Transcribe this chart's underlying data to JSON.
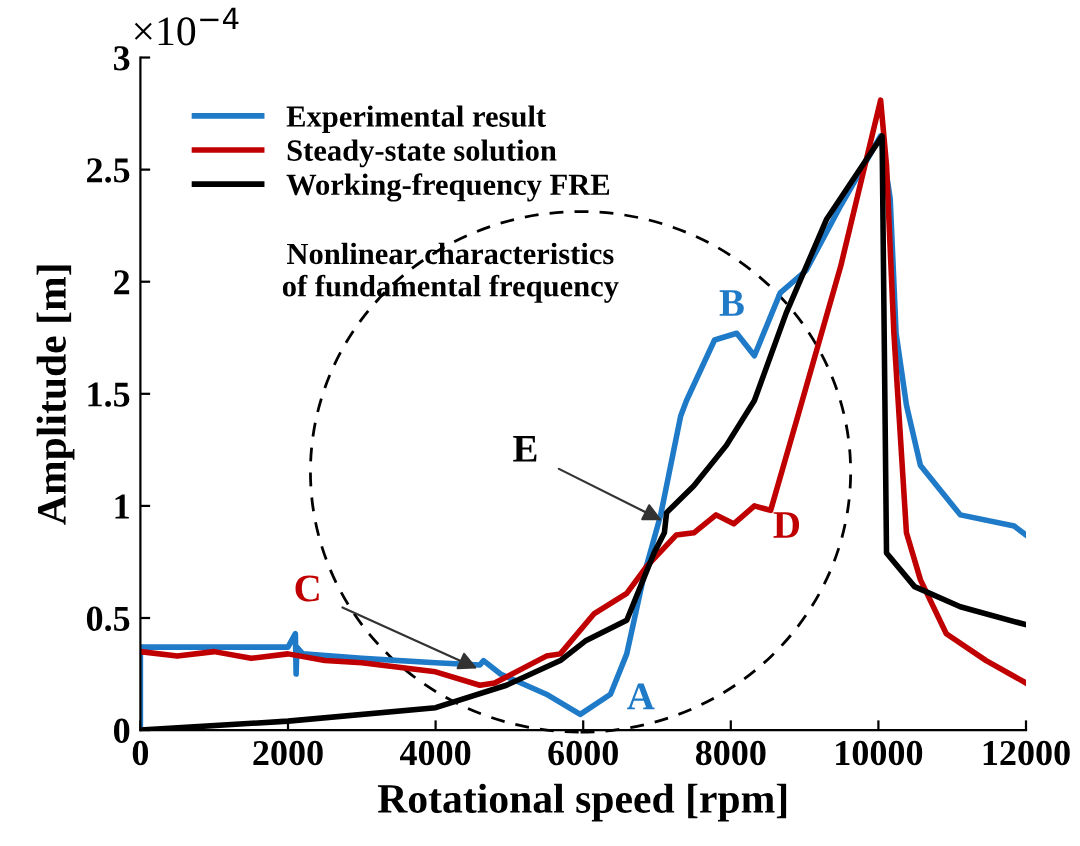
{
  "chart_data": {
    "type": "line",
    "xlabel": "Rotational speed [rpm]",
    "ylabel": "Amplitude [m]",
    "xlim": [
      0,
      12000
    ],
    "ylim": [
      0,
      3
    ],
    "xticks": [
      0,
      2000,
      4000,
      6000,
      8000,
      10000,
      12000
    ],
    "yticks": [
      0,
      0.5,
      1,
      1.5,
      2,
      2.5,
      3
    ],
    "grid": false,
    "legend": "top left",
    "line_style": "solid",
    "marker": "none",
    "series": [
      {
        "name": "Experimental result",
        "color": "#1f7ac8",
        "x": [
          0,
          0,
          1000,
          2000,
          2100,
          2110,
          2120,
          2200,
          3000,
          4000,
          4600,
          4650,
          4880,
          5500,
          5960,
          6370,
          6590,
          6830,
          7050,
          7320,
          7400,
          7780,
          8080,
          8320,
          8670,
          9020,
          9490,
          10030,
          10160,
          10240,
          10380,
          10570,
          11110,
          11840,
          12000
        ],
        "values": [
          0,
          0.37,
          0.37,
          0.37,
          0.43,
          0.25,
          0.37,
          0.34,
          0.32,
          0.3,
          0.29,
          0.31,
          0.25,
          0.16,
          0.07,
          0.16,
          0.34,
          0.7,
          0.96,
          1.4,
          1.47,
          1.74,
          1.77,
          1.67,
          1.95,
          2.05,
          2.34,
          2.65,
          2.37,
          1.77,
          1.45,
          1.18,
          0.96,
          0.91,
          0.87
        ]
      },
      {
        "name": "Steady-state solution",
        "color": "#c00000",
        "x": [
          0,
          500,
          1000,
          1500,
          2000,
          2500,
          3000,
          3500,
          4000,
          4600,
          4800,
          5500,
          5690,
          6150,
          6590,
          6860,
          7260,
          7500,
          7800,
          8040,
          8320,
          8540,
          8890,
          9490,
          10030,
          10110,
          10210,
          10380,
          10570,
          10920,
          11460,
          12000
        ],
        "values": [
          0.35,
          0.33,
          0.35,
          0.32,
          0.34,
          0.31,
          0.3,
          0.28,
          0.26,
          0.2,
          0.21,
          0.33,
          0.34,
          0.52,
          0.61,
          0.73,
          0.87,
          0.88,
          0.96,
          0.92,
          1.0,
          0.98,
          1.38,
          2.07,
          2.81,
          2.52,
          1.77,
          0.88,
          0.67,
          0.43,
          0.31,
          0.21
        ]
      },
      {
        "name": "Working-frequency FRE",
        "color": "#000000",
        "x": [
          0,
          2000,
          4000,
          4960,
          5690,
          6040,
          6590,
          6960,
          7100,
          7130,
          7500,
          7940,
          8320,
          8750,
          9300,
          10050,
          10110,
          10490,
          11110,
          12000
        ],
        "values": [
          0,
          0.04,
          0.1,
          0.2,
          0.31,
          0.4,
          0.49,
          0.79,
          0.88,
          0.97,
          1.09,
          1.27,
          1.47,
          1.86,
          2.28,
          2.65,
          0.79,
          0.64,
          0.55,
          0.47
        ]
      }
    ],
    "annotations": [
      "×10$^{−4}$",
      "Nonlinear characteristics\nof fundamental frequency",
      "A",
      "B",
      "D",
      {
        "text": "C",
        "x": 4600,
        "y": 0.27
      },
      {
        "text": "E",
        "x": 7100,
        "y": 0.93
      }
    ]
  }
}
